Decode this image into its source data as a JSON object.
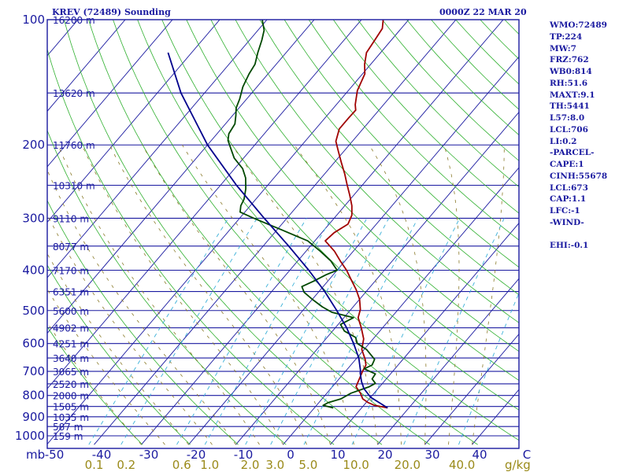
{
  "header": {
    "station": "KREV (72489) Sounding",
    "time": "0000Z 22 MAR 20"
  },
  "stats": [
    "WMO:72489",
    "TP:224",
    "MW:7",
    "FRZ:762",
    "WB0:814",
    "RH:51.6",
    "MAXT:9.1",
    "TH:5441",
    "L57:8.0",
    "LCL:706",
    "LI:0.2",
    "-PARCEL-",
    "CAPE:1",
    "CINH:55678",
    "LCL:673",
    "CAP:1.1",
    "LFC:-1",
    "-WIND-",
    "",
    "EHI:-0.1"
  ],
  "chart_data": {
    "type": "line",
    "title": "KREV (72489) Sounding",
    "subtitle": "0000Z 22 MAR 20",
    "pressure_unit": "mb",
    "mixing_ratio_unit": "g/kg",
    "pressure_levels": [
      {
        "p": 100,
        "label": "100",
        "height": "16200 m"
      },
      {
        "p": 150,
        "label": "",
        "height": "13620 m"
      },
      {
        "p": 200,
        "label": "200",
        "height": "11760 m"
      },
      {
        "p": 250,
        "label": "",
        "height": "10310 m"
      },
      {
        "p": 300,
        "label": "300",
        "height": "9110 m"
      },
      {
        "p": 350,
        "label": "",
        "height": "8077 m"
      },
      {
        "p": 400,
        "label": "400",
        "height": "7170 m"
      },
      {
        "p": 450,
        "label": "",
        "height": "6351 m"
      },
      {
        "p": 500,
        "label": "500",
        "height": "5600 m"
      },
      {
        "p": 550,
        "label": "",
        "height": "4902 m"
      },
      {
        "p": 600,
        "label": "600",
        "height": "4251 m"
      },
      {
        "p": 650,
        "label": "",
        "height": "3640 m"
      },
      {
        "p": 700,
        "label": "700",
        "height": "3065 m"
      },
      {
        "p": 750,
        "label": "",
        "height": "2520 m"
      },
      {
        "p": 800,
        "label": "800",
        "height": "2000 m"
      },
      {
        "p": 850,
        "label": "",
        "height": "1505 m"
      },
      {
        "p": 900,
        "label": "900",
        "height": "1035 m"
      },
      {
        "p": 950,
        "label": "",
        "height": "587 m"
      },
      {
        "p": 1000,
        "label": "1000",
        "height": "159 m"
      }
    ],
    "temperature_ticks": [
      {
        "t": -50,
        "label": "-50"
      },
      {
        "t": -40,
        "label": "-40"
      },
      {
        "t": -30,
        "label": "-30"
      },
      {
        "t": -20,
        "label": "-20"
      },
      {
        "t": -10,
        "label": "-10"
      },
      {
        "t": 0,
        "label": "0"
      },
      {
        "t": 10,
        "label": "10"
      },
      {
        "t": 20,
        "label": "20"
      },
      {
        "t": 30,
        "label": "30"
      },
      {
        "t": 40,
        "label": "40"
      },
      {
        "t": 50,
        "label": "C"
      }
    ],
    "mixing_ratios": [
      {
        "w": 0.1,
        "label": "0.1"
      },
      {
        "w": 0.2,
        "label": "0.2"
      },
      {
        "w": 0.6,
        "label": "0.6"
      },
      {
        "w": 1.0,
        "label": "1.0"
      },
      {
        "w": 2.0,
        "label": "2.0"
      },
      {
        "w": 3.0,
        "label": "3.0"
      },
      {
        "w": 5.0,
        "label": "5.0"
      },
      {
        "w": 10.0,
        "label": "10.0"
      },
      {
        "w": 20.0,
        "label": "20.0"
      },
      {
        "w": 40.0,
        "label": "40.0"
      }
    ],
    "skew_c_per_decade": 75,
    "series": [
      {
        "id": "temperature",
        "color": "#a00000",
        "points": [
          [
            857,
            15.5
          ],
          [
            845,
            12.3
          ],
          [
            832,
            10.4
          ],
          [
            815,
            8.6
          ],
          [
            790,
            7.1
          ],
          [
            762,
            5.0
          ],
          [
            730,
            4.3
          ],
          [
            700,
            3.6
          ],
          [
            676,
            3.2
          ],
          [
            655,
            2.0
          ],
          [
            620,
            -0.5
          ],
          [
            585,
            -2.0
          ],
          [
            550,
            -4.5
          ],
          [
            520,
            -7.0
          ],
          [
            497,
            -8.0
          ],
          [
            470,
            -10.0
          ],
          [
            445,
            -12.5
          ],
          [
            420,
            -15.5
          ],
          [
            400,
            -18.0
          ],
          [
            380,
            -21.0
          ],
          [
            360,
            -24.0
          ],
          [
            340,
            -27.8
          ],
          [
            325,
            -27.4
          ],
          [
            310,
            -26.0
          ],
          [
            295,
            -26.8
          ],
          [
            280,
            -28.5
          ],
          [
            265,
            -30.7
          ],
          [
            248,
            -33.5
          ],
          [
            235,
            -35.7
          ],
          [
            220,
            -38.6
          ],
          [
            208,
            -41.0
          ],
          [
            196,
            -43.5
          ],
          [
            183,
            -45.0
          ],
          [
            172,
            -45.0
          ],
          [
            165,
            -44.9
          ],
          [
            160,
            -46.0
          ],
          [
            148,
            -48.1
          ],
          [
            135,
            -49.5
          ],
          [
            128,
            -51.3
          ],
          [
            120,
            -53.0
          ],
          [
            112,
            -53.5
          ],
          [
            105,
            -54.0
          ],
          [
            100,
            -55.4
          ]
        ]
      },
      {
        "id": "dewpoint",
        "color": "#004800",
        "points": [
          [
            857,
            4.0
          ],
          [
            845,
            1.4
          ],
          [
            832,
            2.0
          ],
          [
            815,
            4.0
          ],
          [
            790,
            5.1
          ],
          [
            762,
            7.8
          ],
          [
            748,
            8.5
          ],
          [
            730,
            7.0
          ],
          [
            710,
            6.8
          ],
          [
            690,
            3.5
          ],
          [
            676,
            4.5
          ],
          [
            655,
            4.0
          ],
          [
            620,
            0.5
          ],
          [
            600,
            -2.5
          ],
          [
            580,
            -4.0
          ],
          [
            560,
            -7.5
          ],
          [
            540,
            -9.5
          ],
          [
            520,
            -8.0
          ],
          [
            505,
            -13.5
          ],
          [
            490,
            -16.5
          ],
          [
            470,
            -20.0
          ],
          [
            452,
            -23.0
          ],
          [
            438,
            -24.5
          ],
          [
            425,
            -23.0
          ],
          [
            410,
            -21.5
          ],
          [
            400,
            -20.0
          ],
          [
            380,
            -23.0
          ],
          [
            360,
            -27.0
          ],
          [
            340,
            -31.5
          ],
          [
            320,
            -39.0
          ],
          [
            300,
            -47.0
          ],
          [
            290,
            -51.0
          ],
          [
            280,
            -52.0
          ],
          [
            270,
            -52.5
          ],
          [
            255,
            -54.0
          ],
          [
            240,
            -56.0
          ],
          [
            228,
            -58.3
          ],
          [
            215,
            -62.0
          ],
          [
            205,
            -64.2
          ],
          [
            195,
            -66.5
          ],
          [
            188,
            -67.5
          ],
          [
            178,
            -68.0
          ],
          [
            170,
            -69.3
          ],
          [
            163,
            -70.6
          ],
          [
            155,
            -71.5
          ],
          [
            145,
            -73.0
          ],
          [
            135,
            -74.0
          ],
          [
            128,
            -74.5
          ],
          [
            120,
            -76.0
          ],
          [
            112,
            -77.4
          ],
          [
            106,
            -78.7
          ],
          [
            100,
            -81.0
          ]
        ]
      },
      {
        "id": "parcel",
        "color": "#00008c",
        "points": [
          [
            857,
            15.5
          ],
          [
            808,
            10.0
          ],
          [
            770,
            7.0
          ],
          [
            740,
            5.2
          ],
          [
            706,
            3.4
          ],
          [
            700,
            3.2
          ],
          [
            650,
            0.4
          ],
          [
            600,
            -3.3
          ],
          [
            550,
            -7.6
          ],
          [
            500,
            -12.8
          ],
          [
            450,
            -18.8
          ],
          [
            400,
            -26.0
          ],
          [
            350,
            -34.6
          ],
          [
            300,
            -44.8
          ],
          [
            250,
            -56.6
          ],
          [
            200,
            -70.0
          ],
          [
            150,
            -85.0
          ],
          [
            120,
            -95.0
          ]
        ]
      }
    ]
  }
}
